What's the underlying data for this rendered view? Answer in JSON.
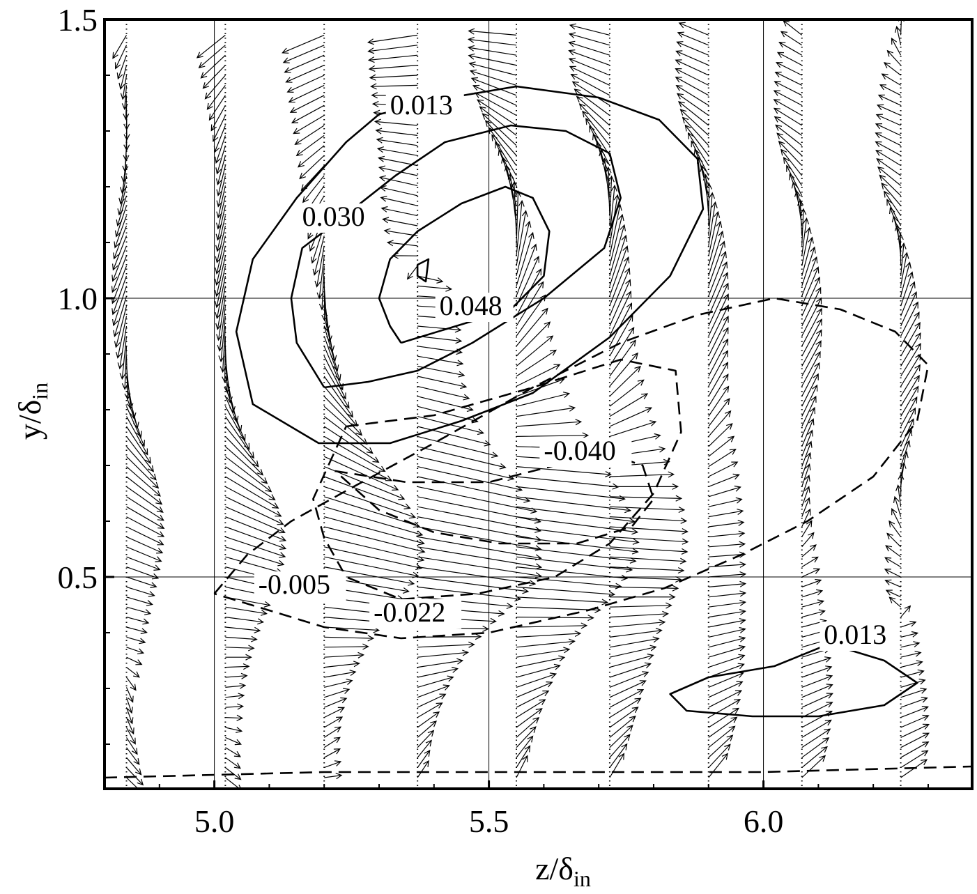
{
  "chart_data": {
    "type": "vector-contour",
    "title": "",
    "xlabel": {
      "main": "z/δ",
      "sub": "in"
    },
    "ylabel": {
      "main": "y/δ",
      "sub": "in"
    },
    "xlim": [
      4.8,
      6.38
    ],
    "ylim": [
      0.12,
      1.5
    ],
    "x_ticks": [
      {
        "value": 5.0,
        "label": "5.0"
      },
      {
        "value": 5.5,
        "label": "5.5"
      },
      {
        "value": 6.0,
        "label": "6.0"
      }
    ],
    "y_ticks": [
      {
        "value": 0.5,
        "label": "0.5"
      },
      {
        "value": 1.0,
        "label": "1.0"
      },
      {
        "value": 1.5,
        "label": "1.5"
      }
    ],
    "grid": true,
    "contour_labels": [
      {
        "text": "0.013",
        "z": 5.32,
        "y": 1.33
      },
      {
        "text": "0.030",
        "z": 5.16,
        "y": 1.13
      },
      {
        "text": "0.048",
        "z": 5.41,
        "y": 0.97
      },
      {
        "text": "-0.040",
        "z": 5.6,
        "y": 0.71
      },
      {
        "text": "-0.005",
        "z": 5.08,
        "y": 0.47
      },
      {
        "text": "-0.022",
        "z": 5.29,
        "y": 0.42
      },
      {
        "text": "0.013",
        "z": 6.11,
        "y": 0.38
      }
    ],
    "contours": [
      {
        "level": "0.013",
        "style": "solid",
        "points": [
          [
            5.3,
            1.33
          ],
          [
            5.43,
            1.36
          ],
          [
            5.55,
            1.38
          ],
          [
            5.7,
            1.36
          ],
          [
            5.81,
            1.32
          ],
          [
            5.88,
            1.25
          ],
          [
            5.89,
            1.16
          ],
          [
            5.83,
            1.04
          ],
          [
            5.72,
            0.93
          ],
          [
            5.58,
            0.83
          ],
          [
            5.45,
            0.78
          ],
          [
            5.32,
            0.74
          ],
          [
            5.19,
            0.74
          ],
          [
            5.07,
            0.81
          ],
          [
            5.04,
            0.94
          ],
          [
            5.07,
            1.07
          ],
          [
            5.15,
            1.18
          ],
          [
            5.24,
            1.28
          ],
          [
            5.3,
            1.33
          ]
        ]
      },
      {
        "level": "0.030",
        "style": "solid",
        "points": [
          [
            5.2,
            0.84
          ],
          [
            5.28,
            0.85
          ],
          [
            5.37,
            0.87
          ],
          [
            5.47,
            0.92
          ],
          [
            5.6,
            1.0
          ],
          [
            5.71,
            1.09
          ],
          [
            5.74,
            1.18
          ],
          [
            5.72,
            1.26
          ],
          [
            5.64,
            1.3
          ],
          [
            5.54,
            1.31
          ],
          [
            5.42,
            1.28
          ],
          [
            5.33,
            1.22
          ],
          [
            5.24,
            1.15
          ],
          [
            5.16,
            1.09
          ],
          [
            5.14,
            1.0
          ],
          [
            5.15,
            0.92
          ],
          [
            5.2,
            0.84
          ]
        ]
      },
      {
        "level": "0.048",
        "style": "solid",
        "points": [
          [
            5.34,
            0.92
          ],
          [
            5.44,
            0.95
          ],
          [
            5.54,
            0.98
          ],
          [
            5.6,
            1.04
          ],
          [
            5.61,
            1.12
          ],
          [
            5.58,
            1.18
          ],
          [
            5.53,
            1.2
          ],
          [
            5.45,
            1.17
          ],
          [
            5.37,
            1.12
          ],
          [
            5.32,
            1.07
          ],
          [
            5.3,
            1.0
          ],
          [
            5.32,
            0.95
          ],
          [
            5.34,
            0.92
          ]
        ]
      },
      {
        "level": "0.048-core",
        "style": "solid",
        "points": [
          [
            5.37,
            1.06
          ],
          [
            5.39,
            1.07
          ],
          [
            5.385,
            1.03
          ],
          [
            5.37,
            1.04
          ],
          [
            5.37,
            1.06
          ]
        ]
      },
      {
        "level": "0.013",
        "style": "solid",
        "points": [
          [
            5.9,
            0.32
          ],
          [
            6.02,
            0.34
          ],
          [
            6.12,
            0.38
          ],
          [
            6.22,
            0.35
          ],
          [
            6.28,
            0.31
          ],
          [
            6.22,
            0.27
          ],
          [
            6.1,
            0.25
          ],
          [
            5.98,
            0.25
          ],
          [
            5.86,
            0.26
          ],
          [
            5.83,
            0.29
          ],
          [
            5.9,
            0.32
          ]
        ]
      },
      {
        "level": "-0.040",
        "style": "dashed",
        "points": [
          [
            5.22,
            0.69
          ],
          [
            5.35,
            0.67
          ],
          [
            5.5,
            0.67
          ],
          [
            5.62,
            0.7
          ],
          [
            5.72,
            0.72
          ],
          [
            5.78,
            0.7
          ],
          [
            5.8,
            0.64
          ],
          [
            5.76,
            0.59
          ],
          [
            5.66,
            0.56
          ],
          [
            5.52,
            0.56
          ],
          [
            5.4,
            0.58
          ],
          [
            5.3,
            0.62
          ],
          [
            5.22,
            0.69
          ]
        ]
      },
      {
        "level": "-0.022",
        "style": "dashed",
        "points": [
          [
            5.24,
            0.77
          ],
          [
            5.4,
            0.79
          ],
          [
            5.58,
            0.84
          ],
          [
            5.74,
            0.89
          ],
          [
            5.84,
            0.87
          ],
          [
            5.85,
            0.76
          ],
          [
            5.8,
            0.65
          ],
          [
            5.72,
            0.56
          ],
          [
            5.62,
            0.5
          ],
          [
            5.48,
            0.47
          ],
          [
            5.34,
            0.46
          ],
          [
            5.24,
            0.5
          ],
          [
            5.2,
            0.57
          ],
          [
            5.18,
            0.64
          ],
          [
            5.24,
            0.77
          ]
        ]
      },
      {
        "level": "-0.005",
        "style": "dashed",
        "points": [
          [
            5.0,
            0.47
          ],
          [
            5.06,
            0.54
          ],
          [
            5.14,
            0.6
          ],
          [
            5.25,
            0.66
          ],
          [
            5.4,
            0.74
          ],
          [
            5.58,
            0.84
          ],
          [
            5.74,
            0.92
          ],
          [
            5.88,
            0.97
          ],
          [
            6.02,
            1.0
          ],
          [
            6.14,
            0.98
          ],
          [
            6.24,
            0.94
          ],
          [
            6.3,
            0.88
          ],
          [
            6.28,
            0.78
          ],
          [
            6.2,
            0.68
          ],
          [
            6.08,
            0.6
          ],
          [
            5.96,
            0.54
          ],
          [
            5.82,
            0.48
          ],
          [
            5.68,
            0.44
          ],
          [
            5.5,
            0.4
          ],
          [
            5.34,
            0.39
          ],
          [
            5.2,
            0.41
          ],
          [
            5.1,
            0.44
          ],
          [
            5.0,
            0.47
          ]
        ]
      },
      {
        "level": "-0.005",
        "style": "dashed",
        "points": [
          [
            4.8,
            0.14
          ],
          [
            5.2,
            0.15
          ],
          [
            5.6,
            0.15
          ],
          [
            6.0,
            0.15
          ],
          [
            6.38,
            0.16
          ]
        ]
      }
    ],
    "vector_columns_z": [
      4.84,
      5.02,
      5.2,
      5.37,
      5.55,
      5.72,
      5.9,
      6.07,
      6.25
    ],
    "vortex_center": {
      "z": 5.38,
      "y": 1.05
    }
  }
}
